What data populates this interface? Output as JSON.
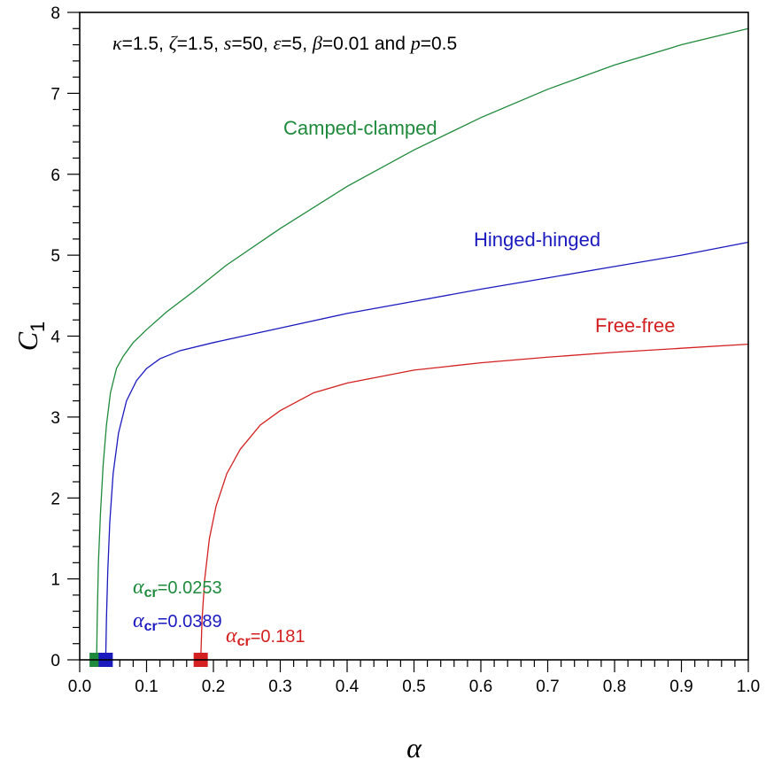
{
  "chart_data": {
    "type": "line",
    "xlabel": "α",
    "ylabel": {
      "symbol": "C",
      "subscript": "1"
    },
    "xlim": [
      0.0,
      1.0
    ],
    "ylim": [
      0,
      8
    ],
    "xticks": [
      "0.0",
      "0.1",
      "0.2",
      "0.3",
      "0.4",
      "0.5",
      "0.6",
      "0.7",
      "0.8",
      "0.9",
      "1.0"
    ],
    "yticks": [
      "0",
      "1",
      "2",
      "3",
      "4",
      "5",
      "6",
      "7",
      "8"
    ],
    "grid": false,
    "annotation": {
      "parts": [
        {
          "t": "κ",
          "i": true
        },
        {
          "t": "=1.5, ",
          "i": false
        },
        {
          "t": "ζ",
          "i": true
        },
        {
          "t": "=1.5, ",
          "i": false
        },
        {
          "t": "s",
          "i": true
        },
        {
          "t": "=50, ",
          "i": false
        },
        {
          "t": "ε",
          "i": true
        },
        {
          "t": "=5, ",
          "i": false
        },
        {
          "t": "β",
          "i": true
        },
        {
          "t": "=0.01 and ",
          "i": false
        },
        {
          "t": "p",
          "i": true
        },
        {
          "t": "=0.5",
          "i": false
        }
      ]
    },
    "series": [
      {
        "name": "Camped-clamped",
        "color": "#1f8a3c",
        "critical": {
          "symbol": "α",
          "sub": "cr",
          "value": "=0.0253",
          "x": 0.0253
        },
        "points": [
          [
            0.0253,
            0
          ],
          [
            0.0262,
            0.5
          ],
          [
            0.028,
            1.2
          ],
          [
            0.031,
            1.8
          ],
          [
            0.035,
            2.4
          ],
          [
            0.04,
            2.9
          ],
          [
            0.046,
            3.3
          ],
          [
            0.055,
            3.6
          ],
          [
            0.065,
            3.75
          ],
          [
            0.08,
            3.92
          ],
          [
            0.1,
            4.08
          ],
          [
            0.13,
            4.3
          ],
          [
            0.17,
            4.55
          ],
          [
            0.22,
            4.88
          ],
          [
            0.3,
            5.33
          ],
          [
            0.4,
            5.85
          ],
          [
            0.5,
            6.3
          ],
          [
            0.6,
            6.7
          ],
          [
            0.7,
            7.05
          ],
          [
            0.8,
            7.35
          ],
          [
            0.9,
            7.6
          ],
          [
            1.0,
            7.8
          ]
        ]
      },
      {
        "name": "Hinged-hinged",
        "color": "#1a1abf",
        "critical": {
          "symbol": "α",
          "sub": "cr",
          "value": "=0.0389",
          "x": 0.0389
        },
        "points": [
          [
            0.0389,
            0
          ],
          [
            0.04,
            0.5
          ],
          [
            0.042,
            1.1
          ],
          [
            0.045,
            1.7
          ],
          [
            0.05,
            2.3
          ],
          [
            0.058,
            2.8
          ],
          [
            0.07,
            3.2
          ],
          [
            0.085,
            3.45
          ],
          [
            0.1,
            3.6
          ],
          [
            0.12,
            3.72
          ],
          [
            0.15,
            3.82
          ],
          [
            0.2,
            3.92
          ],
          [
            0.3,
            4.1
          ],
          [
            0.4,
            4.28
          ],
          [
            0.5,
            4.43
          ],
          [
            0.6,
            4.58
          ],
          [
            0.7,
            4.72
          ],
          [
            0.8,
            4.86
          ],
          [
            0.9,
            5.0
          ],
          [
            1.0,
            5.16
          ]
        ]
      },
      {
        "name": "Free-free",
        "color": "#d42020",
        "critical": {
          "symbol": "α",
          "sub": "cr",
          "value": "=0.181",
          "x": 0.181
        },
        "points": [
          [
            0.181,
            0
          ],
          [
            0.183,
            0.5
          ],
          [
            0.187,
            1.0
          ],
          [
            0.194,
            1.5
          ],
          [
            0.204,
            1.9
          ],
          [
            0.22,
            2.3
          ],
          [
            0.24,
            2.6
          ],
          [
            0.27,
            2.9
          ],
          [
            0.3,
            3.08
          ],
          [
            0.35,
            3.3
          ],
          [
            0.4,
            3.42
          ],
          [
            0.5,
            3.58
          ],
          [
            0.6,
            3.67
          ],
          [
            0.7,
            3.74
          ],
          [
            0.8,
            3.8
          ],
          [
            0.9,
            3.85
          ],
          [
            1.0,
            3.9
          ]
        ]
      }
    ]
  }
}
